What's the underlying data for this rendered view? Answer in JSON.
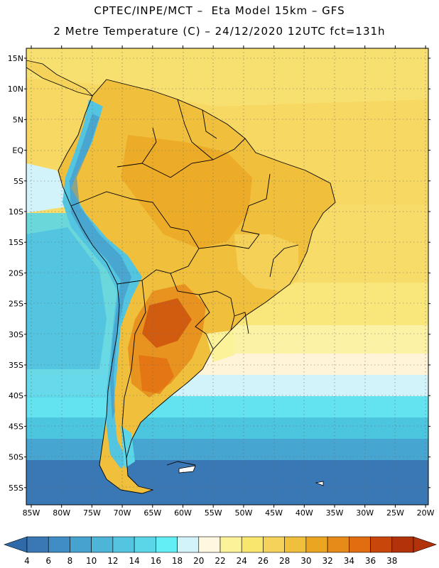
{
  "header": {
    "line1": "CPTEC/INPE/MCT –  Eta Model 15km – GFS",
    "line2": "2 Metre Temperature (C) – 24/12/2020 12UTC fct=131h"
  },
  "latitude_labels": [
    "15N",
    "10N",
    "5N",
    "EQ",
    "5S",
    "10S",
    "15S",
    "20S",
    "25S",
    "30S",
    "35S",
    "40S",
    "45S",
    "50S",
    "55S"
  ],
  "longitude_labels": [
    "85W",
    "80W",
    "75W",
    "70W",
    "65W",
    "60W",
    "55W",
    "50W",
    "45W",
    "40W",
    "35W",
    "30W",
    "25W",
    "20W"
  ],
  "colorbar": {
    "labels": [
      "4",
      "6",
      "8",
      "10",
      "12",
      "14",
      "16",
      "18",
      "20",
      "22",
      "24",
      "26",
      "28",
      "30",
      "32",
      "34",
      "36",
      "38"
    ],
    "colors": [
      "#3a78b5",
      "#3f8dc4",
      "#46a2cf",
      "#4cb5d8",
      "#53c5e0",
      "#5ad6e8",
      "#63eef5",
      "#d3f3fb",
      "#fff7e0",
      "#fcf29a",
      "#f9e66e",
      "#f5d35b",
      "#f0bf3c",
      "#eca521",
      "#e68a1a",
      "#e26c10",
      "#c8460a",
      "#b2320a"
    ],
    "under_color": "#2f6aa8",
    "over_color": "#b2320a"
  }
}
